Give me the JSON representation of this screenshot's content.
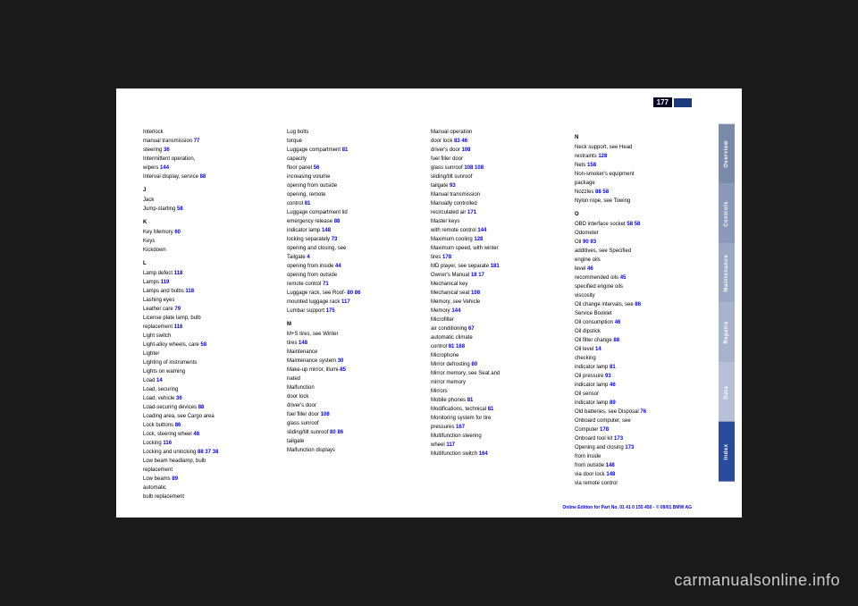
{
  "page_number": "177",
  "footer_text": "Online Edition for Part No. 01 41 0 155 450 - © 09/01 BMW AG",
  "watermark": "carmanualsonline.info",
  "tabs": [
    {
      "label": "Overview",
      "cls": "tab-overview"
    },
    {
      "label": "Controls",
      "cls": "tab-controls"
    },
    {
      "label": "Maintenance",
      "cls": "tab-maintenance"
    },
    {
      "label": "Repairs",
      "cls": "tab-repairs"
    },
    {
      "label": "Data",
      "cls": "tab-data"
    },
    {
      "label": "Index",
      "cls": "tab-index"
    }
  ],
  "columns": [
    [
      {
        "t": "Interlock"
      },
      {
        "t": "manual transmission ",
        "n": "77"
      },
      {
        "t": "steering ",
        "n": "36"
      },
      {
        "t": "Intermittent operation,"
      },
      {
        "t": "wipers ",
        "n": "144"
      },
      {
        "t": "Interval display, service ",
        "n": "88"
      },
      {
        "t": "J",
        "letter": true
      },
      {
        "t": "Jack ",
        "n": ""
      },
      {
        "t": "Jump-starting ",
        "n": "58"
      },
      {
        "t": "K",
        "letter": true
      },
      {
        "t": "Key Memory ",
        "n": "60"
      },
      {
        "t": "Keys"
      },
      {
        "t": "Kickdown ",
        "n": ""
      },
      {
        "t": "L",
        "letter": true
      },
      {
        "t": "Lamp defect ",
        "n": "118"
      },
      {
        "t": "Lamps ",
        "n": "119"
      },
      {
        "t": "Lamps and bulbs ",
        "n": "118"
      },
      {
        "t": "Lashing eyes"
      },
      {
        "t": "Leather care ",
        "n": "79"
      },
      {
        "t": "License plate lamp, bulb"
      },
      {
        "t": "replacement ",
        "n": "116"
      },
      {
        "t": "Light switch"
      },
      {
        "t": "Light-alloy wheels, care ",
        "n": "58"
      },
      {
        "t": "Lighter"
      },
      {
        "t": "Lighting of instruments"
      },
      {
        "t": "Lights on warning"
      },
      {
        "t": "Load ",
        "n": "14"
      },
      {
        "t": "Load, securing ",
        "n": ""
      },
      {
        "t": "Load, vehicle ",
        "n": "36"
      },
      {
        "t": "Load-securing devices ",
        "n": "88"
      },
      {
        "t": "Loading area, see Cargo area"
      },
      {
        "t": "Lock buttons ",
        "n": "86"
      },
      {
        "t": "Lock, steering wheel ",
        "n": "48"
      },
      {
        "t": "Locking ",
        "n": "116"
      },
      {
        "t": "Locking and unlocking ",
        "n2": "88",
        "n3": "37",
        "n4": "38"
      },
      {
        "t": "Low beam headlamp, bulb"
      },
      {
        "t": "replacement"
      },
      {
        "t": "Low beams ",
        "n": "89"
      },
      {
        "t": "automatic"
      },
      {
        "t": "bulb replacement"
      }
    ],
    [
      {
        "t": "Lug bolts"
      },
      {
        "t": "torque"
      },
      {
        "t": "Luggage compartment ",
        "n": "81"
      },
      {
        "t": "capacity"
      },
      {
        "t": "floor panel ",
        "n": "56"
      },
      {
        "t": "increasing volume"
      },
      {
        "t": "opening from outside"
      },
      {
        "t": "opening, remote"
      },
      {
        "t": "control ",
        "n": "81"
      },
      {
        "t": "Luggage compartment lid"
      },
      {
        "t": "emergency release ",
        "n": "88"
      },
      {
        "t": "indicator lamp ",
        "n": "148"
      },
      {
        "t": "locking separately ",
        "n": "73"
      },
      {
        "t": "opening and closing, see"
      },
      {
        "t": "Tailgate ",
        "n": "4"
      },
      {
        "t": "opening from inside ",
        "n3": "44"
      },
      {
        "t": "opening from outside"
      },
      {
        "t": "remote control ",
        "n": "71"
      },
      {
        "t": "Luggage rack, see Roof-",
        "n2": "80",
        "n3": "86"
      },
      {
        "t": "mounted luggage rack ",
        "n": "117"
      },
      {
        "t": "Lumbar support ",
        "n": "175"
      },
      {
        "t": "M",
        "letter": true
      },
      {
        "t": "M+S tires, see Winter"
      },
      {
        "t": "tires ",
        "n": "148"
      },
      {
        "t": "Maintenance"
      },
      {
        "t": "Maintenance system ",
        "n": "30"
      },
      {
        "t": "Make-up mirror, illumi-",
        "n": "85"
      },
      {
        "t": "nated"
      },
      {
        "t": "Malfunction"
      },
      {
        "t": "door lock"
      },
      {
        "t": "driver's door"
      },
      {
        "t": "fuel filler door ",
        "n": "108"
      },
      {
        "t": "glass sunroof"
      },
      {
        "t": "sliding/tilt sunroof ",
        "n2": "80",
        "n3": "86"
      },
      {
        "t": "tailgate"
      },
      {
        "t": "Malfunction displays"
      }
    ],
    [
      {
        "t": "Manual operation"
      },
      {
        "t": "door lock ",
        "n2": "83",
        "n3": "46"
      },
      {
        "t": "driver's door ",
        "n": "108"
      },
      {
        "t": "fuel filler door"
      },
      {
        "t": "glass sunroof ",
        "n2": "108",
        "n3": "108"
      },
      {
        "t": "sliding/tilt sunroof"
      },
      {
        "t": "tailgate ",
        "n": "93"
      },
      {
        "t": "Manual transmission"
      },
      {
        "t": "Manually controlled"
      },
      {
        "t": "recirculated air ",
        "n": "171"
      },
      {
        "t": "Master keys ",
        "n": ""
      },
      {
        "t": "with remote control ",
        "n": "144"
      },
      {
        "t": "Maximum cooling ",
        "n": "128"
      },
      {
        "t": "Maximum speed, with winter"
      },
      {
        "t": "tires ",
        "n": "178"
      },
      {
        "t": "MD player, see separate ",
        "n": "181"
      },
      {
        "t": "Owner's Manual ",
        "n2": "18",
        "n3": "17"
      },
      {
        "t": "Mechanical key"
      },
      {
        "t": "Mechanical seat ",
        "n": "108"
      },
      {
        "t": "Memory, see Vehicle"
      },
      {
        "t": "Memory ",
        "n": "144"
      },
      {
        "t": "Microfilter"
      },
      {
        "t": "air conditioning ",
        "n": "67"
      },
      {
        "t": "automatic climate"
      },
      {
        "t": "control ",
        "n2": "81",
        "n3": "168"
      },
      {
        "t": "Microphone"
      },
      {
        "t": "Mirror defrosting ",
        "n": "80"
      },
      {
        "t": "Mirror memory, see Seat and"
      },
      {
        "t": "mirror memory"
      },
      {
        "t": "Mirrors"
      },
      {
        "t": "Mobile phones ",
        "n": "81"
      },
      {
        "t": "Modifications, technical ",
        "n": "81"
      },
      {
        "t": "Monitoring system for tire"
      },
      {
        "t": "pressures ",
        "n": "167"
      },
      {
        "t": "Multifunction steering"
      },
      {
        "t": "wheel ",
        "n": "117"
      },
      {
        "t": "Multifunction switch ",
        "n": "164"
      }
    ],
    [
      {
        "t": "N",
        "letter": true
      },
      {
        "t": "Neck support, see Head"
      },
      {
        "t": "restraints ",
        "n": "128"
      },
      {
        "t": "Nets ",
        "n": "158"
      },
      {
        "t": "Non-smoker's equipment"
      },
      {
        "t": "package"
      },
      {
        "t": "Nozzles ",
        "n2": "88",
        "n3": "58"
      },
      {
        "t": "Nylon rope, see Towing"
      },
      {
        "t": "O",
        "letter": true
      },
      {
        "t": "OBD interface socket ",
        "n2": "58",
        "n3": "58"
      },
      {
        "t": "Odometer"
      },
      {
        "t": "Oil ",
        "n2": "90",
        "n3": "93"
      },
      {
        "t": "additives, see Specified"
      },
      {
        "t": "engine oils"
      },
      {
        "t": "level ",
        "n": "46"
      },
      {
        "t": "recommended oils ",
        "n": "45"
      },
      {
        "t": "specified engine oils"
      },
      {
        "t": "viscosity"
      },
      {
        "t": "Oil change intervals, see ",
        "n": "86"
      },
      {
        "t": "Service Booklet"
      },
      {
        "t": "Oil consumption ",
        "n": "46"
      },
      {
        "t": "Oil dipstick"
      },
      {
        "t": "Oil filter change ",
        "n": "88"
      },
      {
        "t": "Oil level ",
        "n": "14"
      },
      {
        "t": "checking"
      },
      {
        "t": "indicator lamp ",
        "n": "81"
      },
      {
        "t": "Oil pressure ",
        "n": "93"
      },
      {
        "t": "indicator lamp ",
        "n": "46"
      },
      {
        "t": "Oil sensor"
      },
      {
        "t": "indicator lamp ",
        "n": "89"
      },
      {
        "t": "Old batteries, see Disposal ",
        "n": "76"
      },
      {
        "t": "Onboard computer, see"
      },
      {
        "t": "Computer ",
        "n": "178"
      },
      {
        "t": "Onboard tool kit ",
        "n": "173"
      },
      {
        "t": "Opening and closing ",
        "n": "173"
      },
      {
        "t": "from inside"
      },
      {
        "t": "from outside ",
        "n": "148"
      },
      {
        "t": "via door lock ",
        "n": "148"
      },
      {
        "t": "via remote control"
      }
    ]
  ]
}
